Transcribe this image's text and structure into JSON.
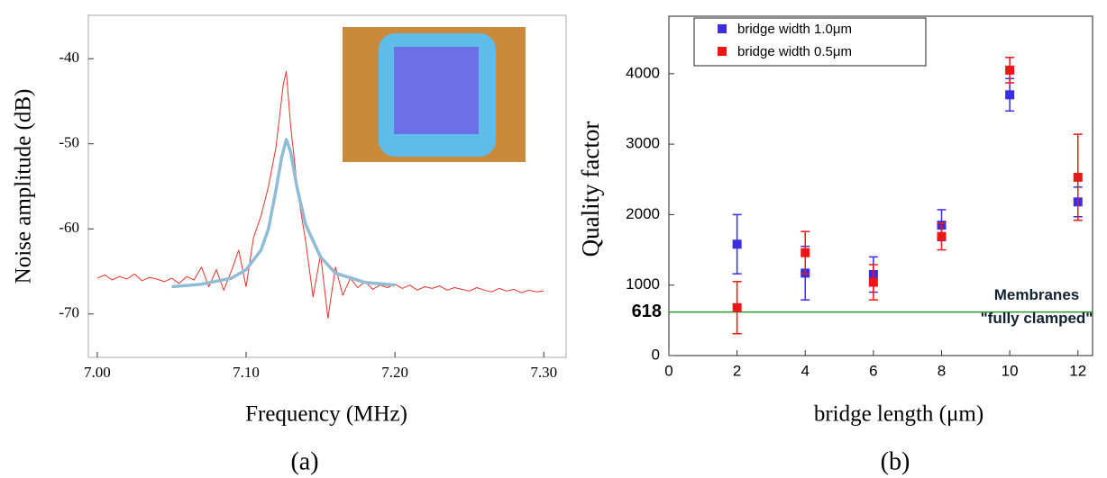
{
  "chart_data": [
    {
      "type": "line",
      "caption": "(a)",
      "x_label": "Frequency (MHz)",
      "y_label": "Noise amplitude (dB)",
      "xlim": [
        6.994,
        7.315
      ],
      "ylim": [
        -75.1,
        -34.9
      ],
      "xticks": [
        {
          "value": 7.0,
          "label": "7.00"
        },
        {
          "value": 7.1,
          "label": "7.10"
        },
        {
          "value": 7.2,
          "label": "7.20"
        },
        {
          "value": 7.3,
          "label": "7.30"
        }
      ],
      "yticks": [
        -40,
        -50,
        -60,
        -70
      ],
      "series": [
        {
          "color": "#e8312a",
          "width": 1,
          "x": [
            7.0,
            7.005,
            7.01,
            7.015,
            7.02,
            7.025,
            7.03,
            7.035,
            7.04,
            7.045,
            7.05,
            7.055,
            7.06,
            7.065,
            7.07,
            7.075,
            7.08,
            7.085,
            7.09,
            7.095,
            7.1,
            7.105,
            7.11,
            7.115,
            7.12,
            7.125,
            7.127,
            7.13,
            7.135,
            7.14,
            7.145,
            7.15,
            7.155,
            7.16,
            7.165,
            7.17,
            7.175,
            7.18,
            7.185,
            7.19,
            7.195,
            7.2,
            7.205,
            7.21,
            7.215,
            7.22,
            7.225,
            7.23,
            7.235,
            7.24,
            7.245,
            7.25,
            7.255,
            7.26,
            7.265,
            7.27,
            7.275,
            7.28,
            7.285,
            7.29,
            7.295,
            7.3
          ],
          "values": [
            -65.8,
            -65.4,
            -66.0,
            -65.6,
            -65.9,
            -65.3,
            -66.1,
            -65.7,
            -65.9,
            -66.2,
            -65.8,
            -66.4,
            -65.6,
            -66.0,
            -64.5,
            -66.8,
            -64.8,
            -67.2,
            -65.0,
            -62.5,
            -66.8,
            -61.0,
            -58.5,
            -55.0,
            -50.5,
            -43.0,
            -41.5,
            -48.0,
            -56.0,
            -61.5,
            -68.0,
            -63.0,
            -70.5,
            -64.5,
            -67.8,
            -65.8,
            -66.9,
            -66.2,
            -67.1,
            -66.6,
            -66.9,
            -66.5,
            -67.0,
            -66.6,
            -67.2,
            -66.8,
            -67.0,
            -66.7,
            -67.2,
            -66.9,
            -67.1,
            -67.3,
            -66.9,
            -67.2,
            -67.4,
            -67.0,
            -67.3,
            -67.1,
            -67.5,
            -67.2,
            -67.4,
            -67.3
          ]
        },
        {
          "color": "#8fbcd4",
          "width": 3.5,
          "x": [
            7.05,
            7.07,
            7.09,
            7.1,
            7.11,
            7.115,
            7.12,
            7.124,
            7.127,
            7.13,
            7.134,
            7.14,
            7.15,
            7.16,
            7.18,
            7.2
          ],
          "values": [
            -66.8,
            -66.5,
            -65.8,
            -64.8,
            -62.5,
            -60.0,
            -55.5,
            -51.5,
            -49.5,
            -51.0,
            -55.0,
            -59.5,
            -63.3,
            -65.2,
            -66.3,
            -66.6
          ]
        }
      ]
    },
    {
      "type": "scatter",
      "caption": "(b)",
      "x_label": "bridge length (μm)",
      "y_label": "Quality factor",
      "xlim": [
        0,
        12.43
      ],
      "ylim": [
        0,
        4815
      ],
      "xticks": [
        0,
        2,
        4,
        6,
        8,
        10,
        12
      ],
      "yticks": [
        0,
        1000,
        2000,
        3000,
        4000
      ],
      "reference_line": {
        "value": 618,
        "label": "618",
        "color": "#2e9a2e",
        "annotation": [
          "Membranes",
          "\"fully clamped\""
        ]
      },
      "series": [
        {
          "name": "bridge  width 1.0μm",
          "color": "#3a2ee0",
          "x": [
            2,
            4,
            6,
            8,
            10,
            12
          ],
          "values": [
            1580,
            1170,
            1150,
            1850,
            3700,
            2180
          ],
          "errors": [
            420,
            380,
            250,
            220,
            230,
            210
          ]
        },
        {
          "name": "bridge  width 0.5μm",
          "color": "#e81818",
          "x": [
            2,
            4,
            6,
            8,
            10,
            12
          ],
          "values": [
            680,
            1460,
            1040,
            1690,
            4050,
            2530
          ],
          "errors": [
            370,
            300,
            250,
            190,
            180,
            610
          ]
        }
      ]
    }
  ]
}
